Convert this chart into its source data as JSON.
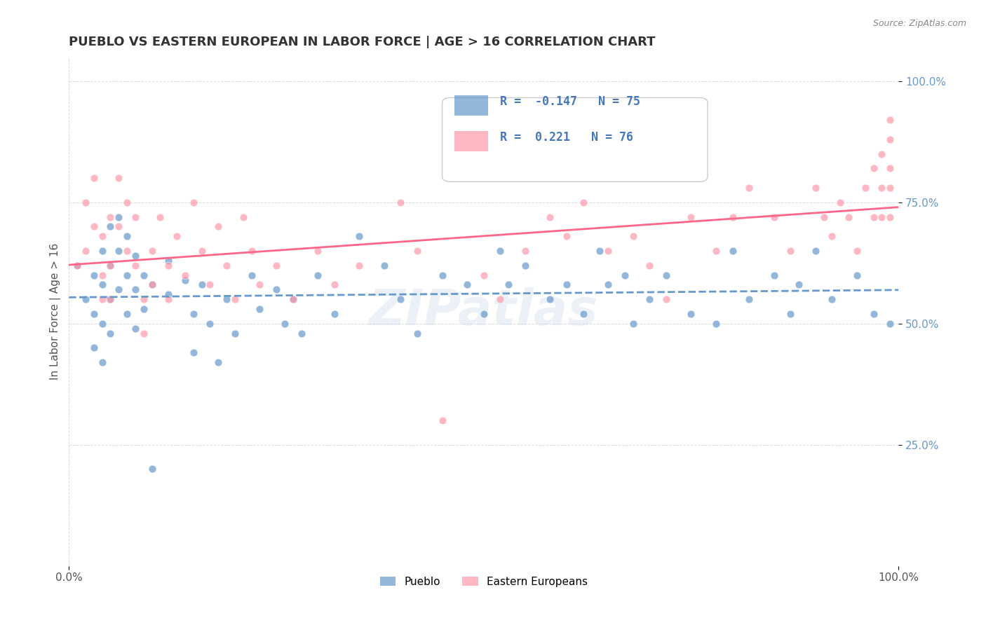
{
  "title": "PUEBLO VS EASTERN EUROPEAN IN LABOR FORCE | AGE > 16 CORRELATION CHART",
  "source_text": "Source: ZipAtlas.com",
  "xlabel": "",
  "ylabel": "In Labor Force | Age > 16",
  "xlim": [
    0.0,
    1.0
  ],
  "ylim": [
    0.0,
    1.0
  ],
  "x_tick_labels": [
    "0.0%",
    "100.0%"
  ],
  "y_tick_labels": [
    "25.0%",
    "50.0%",
    "75.0%",
    "100.0%"
  ],
  "pueblo_color": "#6699cc",
  "eastern_color": "#ff99aa",
  "pueblo_line_color": "#6699cc",
  "eastern_line_color": "#ff6688",
  "R_pueblo": -0.147,
  "N_pueblo": 75,
  "R_eastern": 0.221,
  "N_eastern": 76,
  "legend_box_color": "#ffffff",
  "watermark": "ZIPatlas",
  "pueblo_x": [
    0.01,
    0.02,
    0.03,
    0.03,
    0.03,
    0.04,
    0.04,
    0.04,
    0.04,
    0.05,
    0.05,
    0.05,
    0.05,
    0.06,
    0.06,
    0.06,
    0.07,
    0.07,
    0.07,
    0.08,
    0.08,
    0.08,
    0.09,
    0.09,
    0.1,
    0.1,
    0.12,
    0.12,
    0.14,
    0.15,
    0.15,
    0.16,
    0.17,
    0.18,
    0.19,
    0.2,
    0.22,
    0.23,
    0.25,
    0.26,
    0.27,
    0.28,
    0.3,
    0.32,
    0.35,
    0.38,
    0.4,
    0.42,
    0.45,
    0.48,
    0.5,
    0.52,
    0.53,
    0.55,
    0.58,
    0.6,
    0.62,
    0.64,
    0.65,
    0.67,
    0.68,
    0.7,
    0.72,
    0.75,
    0.78,
    0.8,
    0.82,
    0.85,
    0.87,
    0.88,
    0.9,
    0.92,
    0.95,
    0.97,
    0.99
  ],
  "pueblo_y": [
    0.62,
    0.55,
    0.6,
    0.52,
    0.45,
    0.65,
    0.58,
    0.5,
    0.42,
    0.7,
    0.62,
    0.55,
    0.48,
    0.72,
    0.65,
    0.57,
    0.68,
    0.6,
    0.52,
    0.64,
    0.57,
    0.49,
    0.6,
    0.53,
    0.58,
    0.2,
    0.63,
    0.56,
    0.59,
    0.52,
    0.44,
    0.58,
    0.5,
    0.42,
    0.55,
    0.48,
    0.6,
    0.53,
    0.57,
    0.5,
    0.55,
    0.48,
    0.6,
    0.52,
    0.68,
    0.62,
    0.55,
    0.48,
    0.6,
    0.58,
    0.52,
    0.65,
    0.58,
    0.62,
    0.55,
    0.58,
    0.52,
    0.65,
    0.58,
    0.6,
    0.5,
    0.55,
    0.6,
    0.52,
    0.5,
    0.65,
    0.55,
    0.6,
    0.52,
    0.58,
    0.65,
    0.55,
    0.6,
    0.52,
    0.5
  ],
  "eastern_x": [
    0.01,
    0.02,
    0.02,
    0.03,
    0.03,
    0.04,
    0.04,
    0.04,
    0.05,
    0.05,
    0.05,
    0.06,
    0.06,
    0.07,
    0.07,
    0.08,
    0.08,
    0.09,
    0.09,
    0.1,
    0.1,
    0.11,
    0.12,
    0.12,
    0.13,
    0.14,
    0.15,
    0.16,
    0.17,
    0.18,
    0.19,
    0.2,
    0.21,
    0.22,
    0.23,
    0.25,
    0.27,
    0.3,
    0.32,
    0.35,
    0.4,
    0.42,
    0.45,
    0.5,
    0.52,
    0.55,
    0.58,
    0.6,
    0.62,
    0.65,
    0.68,
    0.7,
    0.72,
    0.75,
    0.78,
    0.8,
    0.82,
    0.85,
    0.87,
    0.9,
    0.91,
    0.92,
    0.93,
    0.94,
    0.95,
    0.96,
    0.97,
    0.97,
    0.98,
    0.98,
    0.98,
    0.99,
    0.99,
    0.99,
    0.99,
    0.99
  ],
  "eastern_y": [
    0.62,
    0.75,
    0.65,
    0.8,
    0.7,
    0.55,
    0.68,
    0.6,
    0.72,
    0.62,
    0.55,
    0.8,
    0.7,
    0.75,
    0.65,
    0.72,
    0.62,
    0.55,
    0.48,
    0.65,
    0.58,
    0.72,
    0.62,
    0.55,
    0.68,
    0.6,
    0.75,
    0.65,
    0.58,
    0.7,
    0.62,
    0.55,
    0.72,
    0.65,
    0.58,
    0.62,
    0.55,
    0.65,
    0.58,
    0.62,
    0.75,
    0.65,
    0.3,
    0.6,
    0.55,
    0.65,
    0.72,
    0.68,
    0.75,
    0.65,
    0.68,
    0.62,
    0.55,
    0.72,
    0.65,
    0.72,
    0.78,
    0.72,
    0.65,
    0.78,
    0.72,
    0.68,
    0.75,
    0.72,
    0.65,
    0.78,
    0.72,
    0.82,
    0.78,
    0.72,
    0.85,
    0.78,
    0.72,
    0.88,
    0.82,
    0.92
  ]
}
